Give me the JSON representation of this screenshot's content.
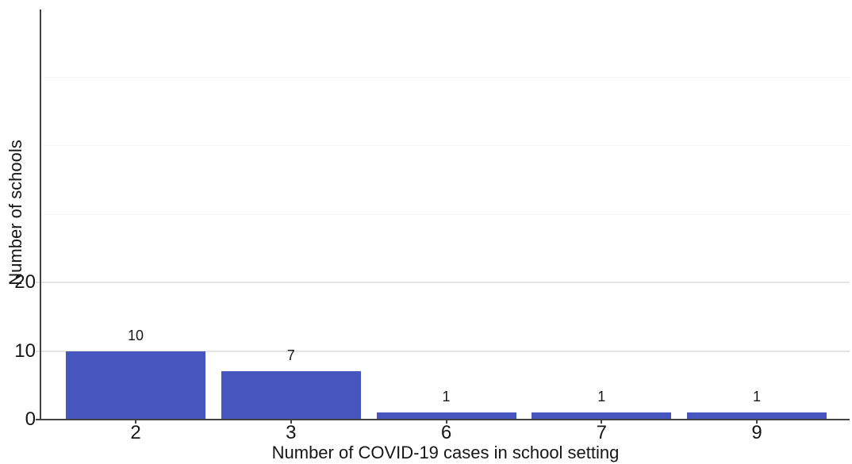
{
  "chart_data": {
    "type": "bar",
    "title": "",
    "xlabel": "Number of COVID-19 cases in school setting",
    "ylabel": "Number of schools",
    "categories": [
      "2",
      "3",
      "6",
      "7",
      "9"
    ],
    "values": [
      10,
      7,
      1,
      1,
      1
    ],
    "bar_value_labels": [
      "10",
      "7",
      "1",
      "1",
      "1"
    ],
    "ylim": [
      0,
      60
    ],
    "ytick_labels": [
      "0",
      "10",
      "20"
    ],
    "ytick_values": [
      0,
      10,
      20
    ],
    "gridlines_major": [
      10,
      20
    ],
    "gridlines_faint": [
      30,
      40,
      50
    ],
    "grid": "horizontal-only",
    "legend": "none",
    "colors": {
      "bar": "#4656BE",
      "axis": "#434343",
      "gridline": "#e4e4e4",
      "gridline_faint": "#f5f5f5",
      "text": "#161616"
    }
  }
}
